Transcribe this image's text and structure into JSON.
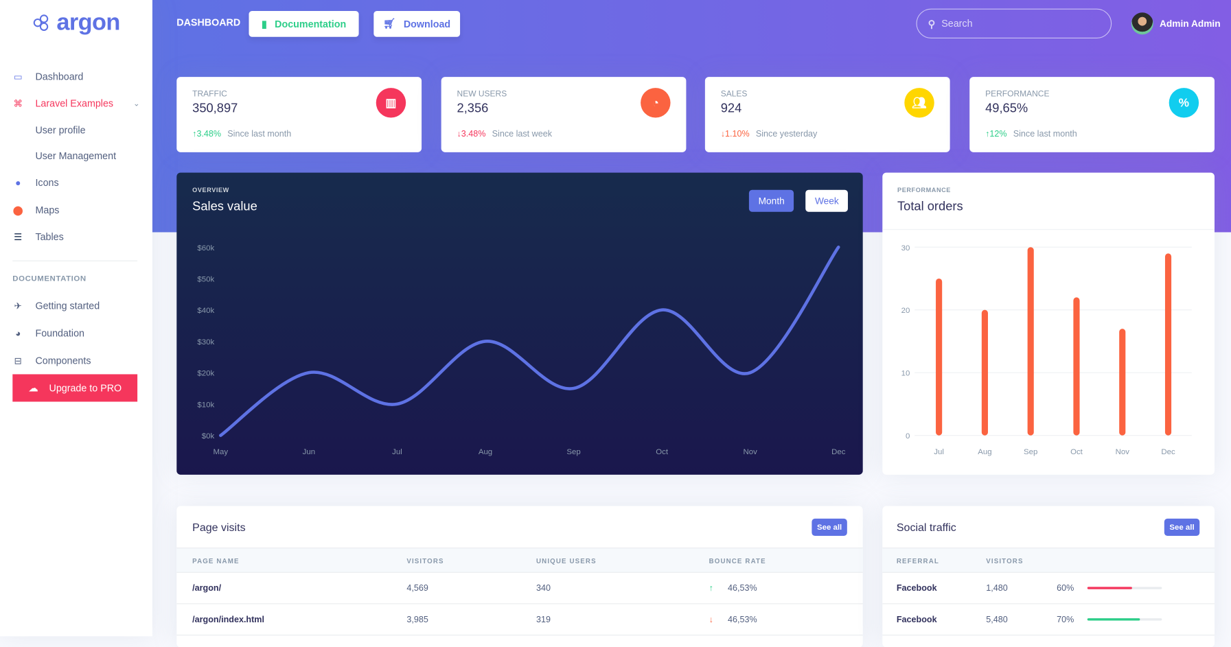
{
  "sidebar": {
    "logo": "argon",
    "items": [
      {
        "label": "Dashboard",
        "icon": "tv-icon"
      },
      {
        "label": "Laravel Examples",
        "icon": "laravel-icon",
        "active": true
      },
      {
        "label": "User profile"
      },
      {
        "label": "User Management"
      },
      {
        "label": "Icons",
        "icon": "planet-icon"
      },
      {
        "label": "Maps",
        "icon": "pin-icon"
      },
      {
        "label": "Tables",
        "icon": "bullet-list-icon"
      }
    ],
    "doc_heading": "DOCUMENTATION",
    "doc_items": [
      {
        "label": "Getting started",
        "icon": "spaceship-icon"
      },
      {
        "label": "Foundation",
        "icon": "palette-icon"
      },
      {
        "label": "Components",
        "icon": "ui-icon"
      }
    ],
    "upgrade": "Upgrade to PRO"
  },
  "header": {
    "brand": "DASHBOARD",
    "documentation": "Documentation",
    "download": "Download",
    "search_placeholder": "Search",
    "user": "Admin Admin"
  },
  "colors": {
    "primary": "#5e72e4",
    "danger": "#f5365c",
    "warning": "#fb6340",
    "yellow": "#ffd600",
    "info": "#11cdef",
    "success": "#2dce89"
  },
  "stats": [
    {
      "label": "Traffic",
      "value": "350,897",
      "change": "3.48%",
      "dir": "up",
      "since": "Since last month",
      "icon": "chart-bar-icon",
      "color": "#f5365c"
    },
    {
      "label": "New users",
      "value": "2,356",
      "change": "3.48%",
      "dir": "down",
      "since": "Since last week",
      "icon": "chart-pie-icon",
      "color": "#fb6340"
    },
    {
      "label": "Sales",
      "value": "924",
      "change": "1.10%",
      "dir": "down",
      "since": "Since yesterday",
      "icon": "users-icon",
      "color": "#ffd600"
    },
    {
      "label": "Performance",
      "value": "49,65%",
      "change": "12%",
      "dir": "up",
      "since": "Since last month",
      "icon": "percent-icon",
      "color": "#11cdef"
    }
  ],
  "sales": {
    "overline": "OVERVIEW",
    "title": "Sales value",
    "tab_month": "Month",
    "tab_week": "Week"
  },
  "orders": {
    "overline": "PERFORMANCE",
    "title": "Total orders"
  },
  "chart_data": [
    {
      "type": "line",
      "x": [
        "May",
        "Jun",
        "Jul",
        "Aug",
        "Sep",
        "Oct",
        "Nov",
        "Dec"
      ],
      "values": [
        0,
        20,
        10,
        30,
        15,
        40,
        20,
        60
      ],
      "ylim": [
        0,
        60
      ],
      "yticks": [
        "$0k",
        "$10k",
        "$20k",
        "$30k",
        "$40k",
        "$50k",
        "$60k"
      ],
      "grid": false,
      "color": "#5e72e4"
    },
    {
      "type": "bar",
      "categories": [
        "Jul",
        "Aug",
        "Sep",
        "Oct",
        "Nov",
        "Dec"
      ],
      "values": [
        25,
        20,
        30,
        22,
        17,
        29
      ],
      "ylim": [
        0,
        30
      ],
      "yticks": [
        "0",
        "10",
        "20",
        "30"
      ],
      "grid": true,
      "color": "#fb6340"
    }
  ],
  "page_visits": {
    "title": "Page visits",
    "see_all": "See all",
    "headers": [
      "PAGE NAME",
      "VISITORS",
      "UNIQUE USERS",
      "BOUNCE RATE"
    ],
    "rows": [
      {
        "page": "/argon/",
        "visitors": "4,569",
        "unique": "340",
        "bounce": "46,53%",
        "dir": "up"
      },
      {
        "page": "/argon/index.html",
        "visitors": "3,985",
        "unique": "319",
        "bounce": "46,53%",
        "dir": "down"
      }
    ]
  },
  "social": {
    "title": "Social traffic",
    "see_all": "See all",
    "headers": [
      "REFERRAL",
      "VISITORS"
    ],
    "rows": [
      {
        "referral": "Facebook",
        "visitors": "1,480",
        "pct": "60%",
        "value": 60,
        "color": "#f5365c"
      },
      {
        "referral": "Facebook",
        "visitors": "5,480",
        "pct": "70%",
        "value": 70,
        "color": "#2dce89"
      }
    ]
  }
}
